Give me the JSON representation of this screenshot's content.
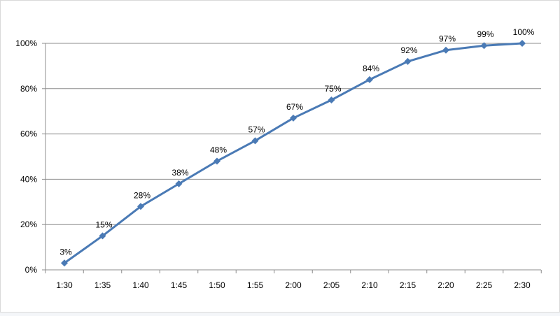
{
  "chart_data": {
    "type": "line",
    "title": "",
    "xlabel": "",
    "ylabel": "",
    "categories": [
      "1:30",
      "1:35",
      "1:40",
      "1:45",
      "1:50",
      "1:55",
      "2:00",
      "2:05",
      "2:10",
      "2:15",
      "2:20",
      "2:25",
      "2:30"
    ],
    "series": [
      {
        "values": [
          3,
          15,
          28,
          38,
          48,
          57,
          67,
          75,
          84,
          92,
          97,
          99,
          100
        ],
        "color": "#4a7ab5",
        "marker": "diamond",
        "labels": [
          "3%",
          "15%",
          "28%",
          "38%",
          "48%",
          "57%",
          "67%",
          "75%",
          "84%",
          "92%",
          "97%",
          "99%",
          "100%"
        ]
      }
    ],
    "ylim": [
      0,
      100
    ],
    "yticks": [
      0,
      20,
      40,
      60,
      80,
      100
    ],
    "ytick_labels": [
      "0%",
      "20%",
      "40%",
      "60%",
      "80%",
      "100%"
    ],
    "grid": true,
    "legend": "none"
  },
  "colors": {
    "plot_background": "#ffffff",
    "page_background": "#f4f6f9",
    "gridline": "#8c8c8c",
    "series": "#4a7ab5"
  }
}
